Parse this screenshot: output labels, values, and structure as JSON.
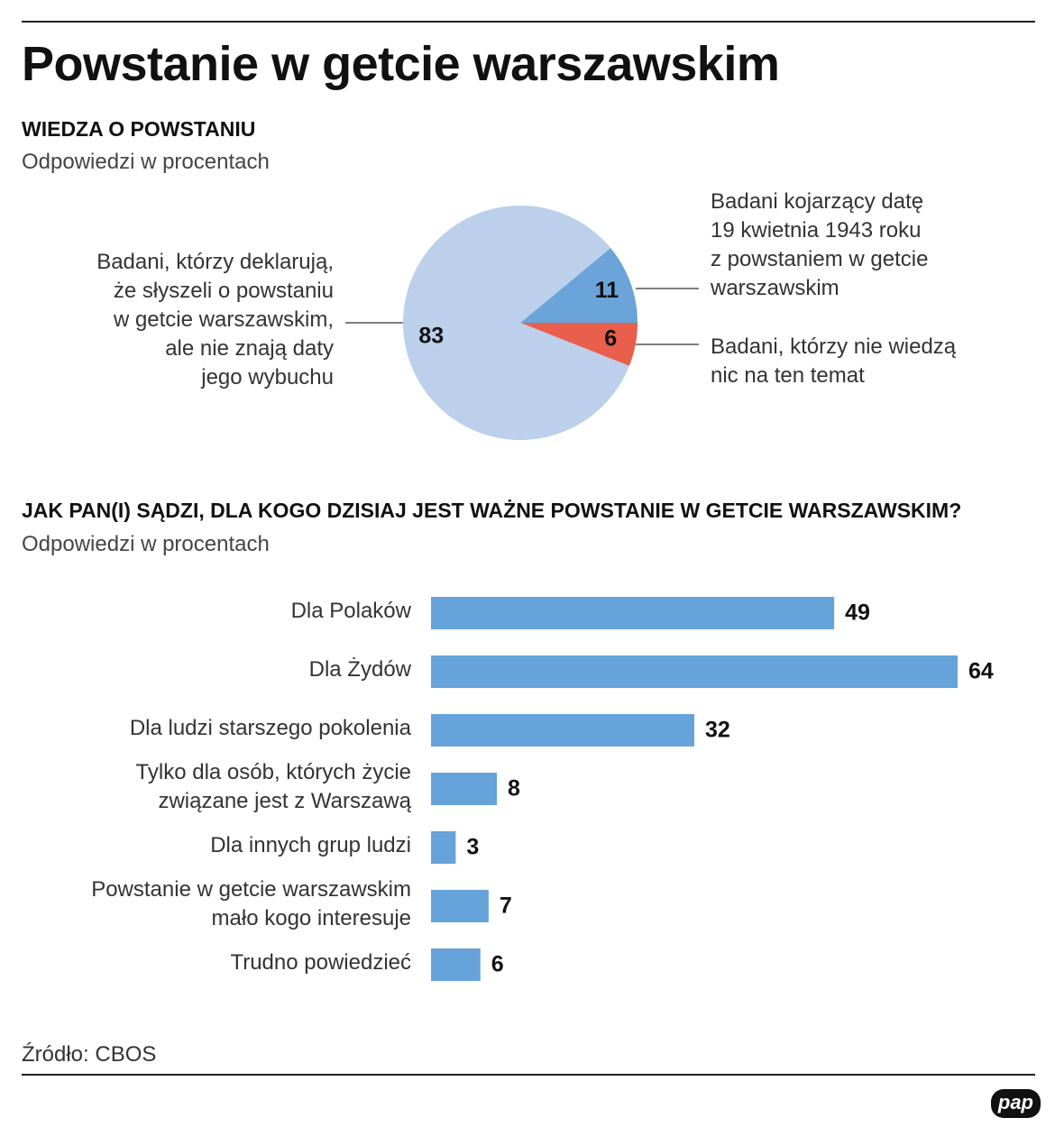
{
  "title": "Powstanie w getcie warszawskim",
  "source": "Źródło: CBOS",
  "logo": "pap",
  "chart_data": [
    {
      "type": "pie",
      "title": "WIEDZA O POWSTANIU",
      "subtitle": "Odpowiedzi w procentach",
      "categories": [
        "Badani kojarzący datę\n19 kwietnia 1943 roku\nz powstaniem w getcie\nwarszawskim",
        "Badani, którzy nie wiedzą\nnic na ten temat",
        "Badani, którzy deklarują,\nże słyszeli o powstaniu\nw getcie warszawskim,\nale nie znają daty\njego wybuchu"
      ],
      "values": [
        11,
        6,
        83
      ],
      "colors": [
        "#6aa4d9",
        "#e8604c",
        "#bcd0ec"
      ]
    },
    {
      "type": "bar",
      "title": "JAK PAN(I) SĄDZI, DLA KOGO DZISIAJ JEST WAŻNE POWSTANIE W GETCIE WARSZAWSKIM?",
      "subtitle": "Odpowiedzi w procentach",
      "categories": [
        "Dla Polaków",
        "Dla Żydów",
        "Dla ludzi starszego pokolenia",
        "Tylko dla osób, których życie\nzwiązane jest z Warszawą",
        "Dla innych grup ludzi",
        "Powstanie w getcie warszawskim\nmało kogo interesuje",
        "Trudno powiedzieć"
      ],
      "values": [
        49,
        64,
        32,
        8,
        3,
        7,
        6
      ],
      "color": "#65a3da"
    }
  ]
}
